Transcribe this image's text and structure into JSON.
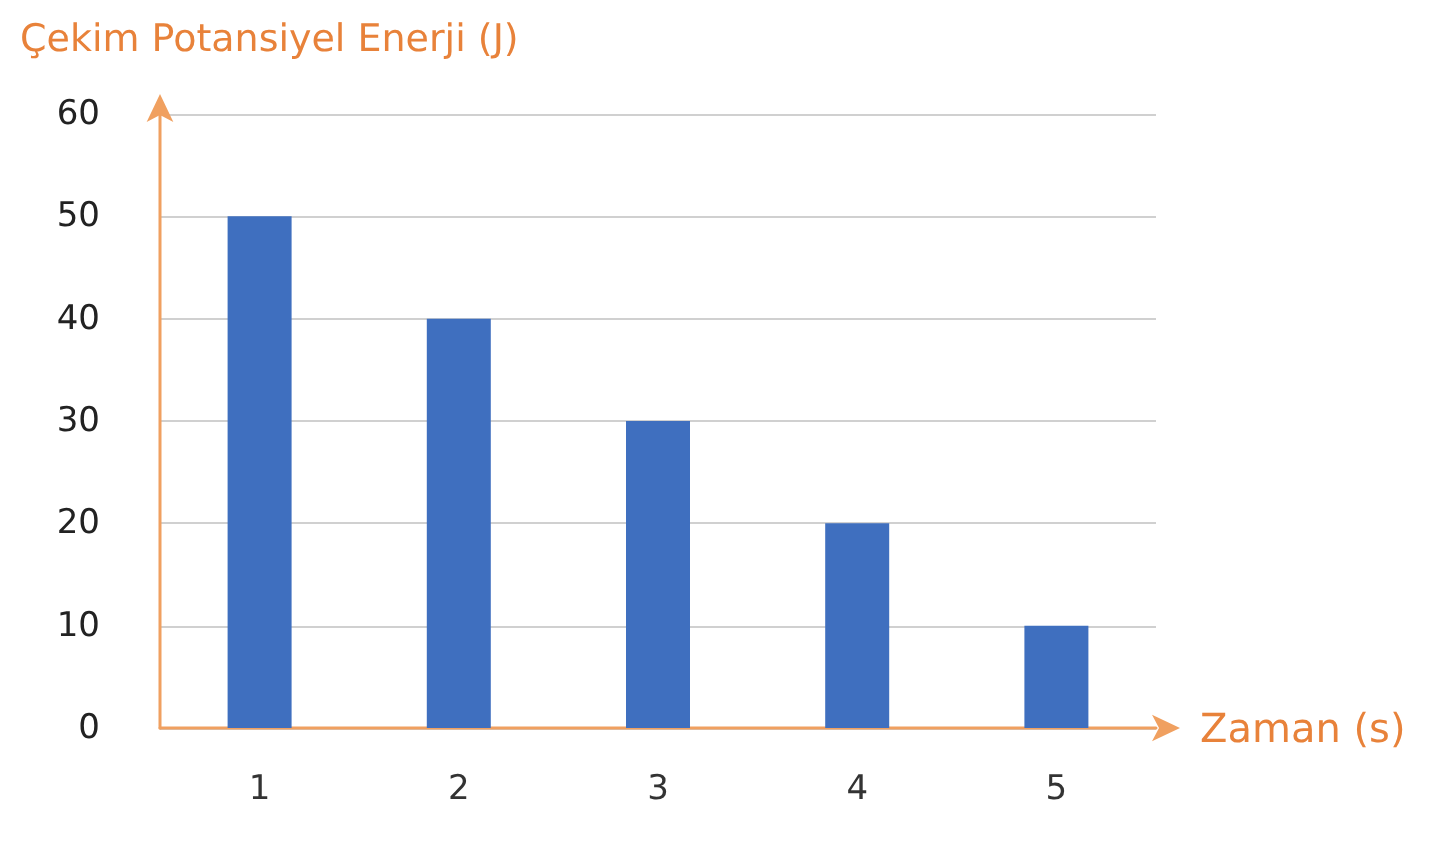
{
  "chart_data": {
    "type": "bar",
    "ylabel": "Çekim Potansiyel Enerji (J)",
    "xlabel": "Zaman (s)",
    "categories": [
      "1",
      "2",
      "3",
      "4",
      "5"
    ],
    "values": [
      50,
      40,
      30,
      20,
      10
    ],
    "color": "#3f6fbf",
    "ylim": [
      0,
      60
    ],
    "yticks": [
      0,
      10,
      20,
      30,
      40,
      50,
      60
    ],
    "grid": "y"
  }
}
